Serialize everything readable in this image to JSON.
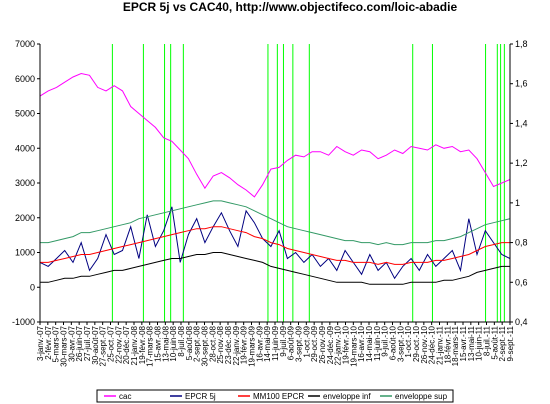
{
  "chart_data": {
    "type": "line",
    "title": "EPCR 5j vs CAC40, http://www.objectifeco.com/loic-abadie",
    "xlabel": "",
    "ylabel": "",
    "ylabel_right": "",
    "ylim": [
      -1000,
      7000
    ],
    "ylim_right": [
      0.4,
      1.8
    ],
    "y_ticks": [
      "-1000",
      "0",
      "1000",
      "2000",
      "3000",
      "4000",
      "5000",
      "6000",
      "7000"
    ],
    "y2_ticks": [
      "0,4",
      "0,6",
      "0,8",
      "1",
      "1,2",
      "1,4",
      "1,6",
      "1,8"
    ],
    "x_tick_labels": [
      "3-janv.-07",
      "2-févr.-07",
      "5-mars-07",
      "30-mars-07",
      "30-avr.-07",
      "26-juin-07",
      "27-juil.-07",
      "30-août-07",
      "27-sept.-07",
      "25-oct.-07",
      "22-nov.-07",
      "20-déc.-07",
      "21-janv.-08",
      "19-févr.-08",
      "17-mars-08",
      "15-avr.-08",
      "13-mai-08",
      "10-juin-08",
      "8-juil.-08",
      "5-août-08",
      "2-sept.-08",
      "30-sept.-08",
      "28-oct.-08",
      "25-nov.-08",
      "23-déc.-08",
      "22-janv.-09",
      "19-févr.-09",
      "19-mars-09",
      "16-avr.-09",
      "14-mai-09",
      "11-juin-09",
      "9-juil.-09",
      "6-août-09",
      "3-sept.-09",
      "1-oct.-09",
      "29-oct.-09",
      "26-nov.-09",
      "24-déc.-09",
      "22-janv.-10",
      "19-févr.-10",
      "19-mars-10",
      "16-avr.-10",
      "14-mai-10",
      "11-juin-10",
      "9-juil.-10",
      "6-août-10",
      "3-sept.-10",
      "1-oct.-10",
      "29-oct.-10",
      "26-nov.-10",
      "24-déc.-10",
      "21-janv.-11",
      "18-févr.-11",
      "18-mars-11",
      "15-avr.-11",
      "13-mai-11",
      "10-juin-11",
      "8-juil.-11",
      "5-août-11",
      "2-sept.-11",
      "9-sept.-11"
    ],
    "series": [
      {
        "name": "cac",
        "axis": "left",
        "color": "#ff00ff",
        "values": [
          5500,
          5650,
          5750,
          5900,
          6050,
          6150,
          6100,
          5750,
          5650,
          5800,
          5650,
          5200,
          5000,
          4800,
          4600,
          4300,
          4200,
          3950,
          3700,
          3250,
          2850,
          3200,
          3300,
          3150,
          2950,
          2800,
          2600,
          2950,
          3400,
          3450,
          3650,
          3800,
          3750,
          3900,
          3900,
          3800,
          4050,
          3900,
          3800,
          3950,
          3900,
          3700,
          3800,
          3950,
          3850,
          4050,
          4000,
          3950,
          4100,
          4000,
          4050,
          3900,
          3950,
          3700,
          3300,
          2900,
          3000,
          3100
        ]
      },
      {
        "name": "EPCR 5j",
        "axis": "right",
        "color": "#000080",
        "values": [
          0.7,
          0.68,
          0.72,
          0.76,
          0.7,
          0.8,
          0.66,
          0.72,
          0.84,
          0.74,
          0.76,
          0.88,
          0.72,
          0.94,
          0.78,
          0.86,
          0.98,
          0.7,
          0.84,
          0.92,
          0.8,
          0.88,
          0.95,
          0.86,
          0.78,
          0.96,
          0.9,
          0.82,
          0.78,
          0.86,
          0.72,
          0.75,
          0.7,
          0.74,
          0.68,
          0.72,
          0.66,
          0.76,
          0.7,
          0.64,
          0.74,
          0.66,
          0.7,
          0.62,
          0.68,
          0.72,
          0.66,
          0.74,
          0.68,
          0.72,
          0.76,
          0.66,
          0.92,
          0.74,
          0.86,
          0.8,
          0.74,
          0.72
        ]
      },
      {
        "name": "MM100 EPCR",
        "axis": "right",
        "color": "#ff0000",
        "values": [
          0.7,
          0.7,
          0.71,
          0.72,
          0.73,
          0.74,
          0.74,
          0.75,
          0.76,
          0.77,
          0.78,
          0.79,
          0.8,
          0.81,
          0.82,
          0.83,
          0.84,
          0.85,
          0.86,
          0.87,
          0.87,
          0.88,
          0.88,
          0.87,
          0.86,
          0.85,
          0.83,
          0.82,
          0.8,
          0.79,
          0.77,
          0.76,
          0.75,
          0.74,
          0.73,
          0.72,
          0.71,
          0.71,
          0.7,
          0.7,
          0.7,
          0.69,
          0.7,
          0.69,
          0.69,
          0.7,
          0.7,
          0.7,
          0.71,
          0.71,
          0.72,
          0.73,
          0.74,
          0.76,
          0.78,
          0.79,
          0.8,
          0.8
        ]
      },
      {
        "name": "enveloppe inf",
        "axis": "right",
        "color": "#000000",
        "values": [
          0.6,
          0.6,
          0.61,
          0.62,
          0.62,
          0.63,
          0.63,
          0.64,
          0.65,
          0.66,
          0.66,
          0.67,
          0.68,
          0.69,
          0.7,
          0.71,
          0.72,
          0.72,
          0.73,
          0.74,
          0.74,
          0.75,
          0.75,
          0.74,
          0.73,
          0.72,
          0.71,
          0.7,
          0.68,
          0.67,
          0.66,
          0.65,
          0.64,
          0.63,
          0.62,
          0.61,
          0.6,
          0.6,
          0.6,
          0.6,
          0.59,
          0.59,
          0.59,
          0.59,
          0.59,
          0.6,
          0.6,
          0.6,
          0.6,
          0.61,
          0.61,
          0.62,
          0.63,
          0.65,
          0.66,
          0.67,
          0.68,
          0.68
        ]
      },
      {
        "name": "enveloppe sup",
        "axis": "right",
        "color": "#339966",
        "values": [
          0.8,
          0.8,
          0.81,
          0.82,
          0.83,
          0.85,
          0.85,
          0.86,
          0.87,
          0.88,
          0.89,
          0.9,
          0.92,
          0.93,
          0.94,
          0.95,
          0.96,
          0.97,
          0.98,
          0.99,
          1.0,
          1.01,
          1.01,
          1.0,
          0.99,
          0.98,
          0.96,
          0.94,
          0.92,
          0.9,
          0.88,
          0.87,
          0.86,
          0.85,
          0.84,
          0.83,
          0.82,
          0.81,
          0.81,
          0.8,
          0.8,
          0.79,
          0.8,
          0.79,
          0.79,
          0.8,
          0.8,
          0.8,
          0.81,
          0.81,
          0.82,
          0.83,
          0.85,
          0.87,
          0.89,
          0.9,
          0.91,
          0.92
        ]
      }
    ],
    "signal_lines": {
      "color": "#00ff00",
      "positions": [
        0.154,
        0.22,
        0.265,
        0.278,
        0.305,
        0.485,
        0.505,
        0.518,
        0.538,
        0.573,
        0.793,
        0.835,
        0.948,
        0.973,
        0.98,
        0.988
      ]
    },
    "legend": {
      "placement": "bottom",
      "entries": [
        {
          "label": "cac",
          "color": "#ff00ff"
        },
        {
          "label": "EPCR 5j",
          "color": "#000080"
        },
        {
          "label": "MM100 EPCR",
          "color": "#ff0000"
        },
        {
          "label": "enveloppe inf",
          "color": "#000000"
        },
        {
          "label": "enveloppe sup",
          "color": "#339966"
        }
      ]
    }
  }
}
